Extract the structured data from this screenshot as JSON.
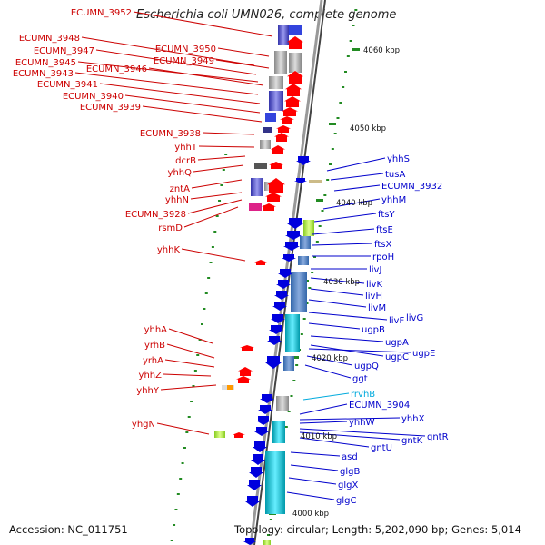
{
  "title": "Escherichia coli UMN026, complete genome",
  "footer": {
    "accession": "Accession: NC_011751",
    "topology": "Topology: circular; Length: 5,202,090 bp; Genes: 5,014"
  },
  "colors": {
    "forward": "#ff0000",
    "reverse": "#0000dd",
    "tick": "#228b22",
    "left_label": "#cc0000",
    "right_label": "#0000cc",
    "rna_label": "#00aadd"
  },
  "scale_labels": [
    {
      "text": "4060 kbp",
      "id": "4060"
    },
    {
      "text": "4050 kbp",
      "id": "4050"
    },
    {
      "text": "4040 kbp",
      "id": "4040"
    },
    {
      "text": "4030 kbp",
      "id": "4030"
    },
    {
      "text": "4020 kbp",
      "id": "4020"
    },
    {
      "text": "4010 kbp",
      "id": "4010"
    },
    {
      "text": "4000 kbp",
      "id": "4000"
    }
  ],
  "left_genes": [
    "ECUMN_3952",
    "ECUMN_3948",
    "ECUMN_3950",
    "ECUMN_3947",
    "ECUMN_3949",
    "ECUMN_3945",
    "ECUMN_3946",
    "ECUMN_3943",
    "ECUMN_3941",
    "ECUMN_3940",
    "ECUMN_3939",
    "ECUMN_3938",
    "yhhT",
    "dcrB",
    "yhhQ",
    "zntA",
    "yhhN",
    "ECUMN_3928",
    "rsmD",
    "yhhK",
    "yhhA",
    "yrhB",
    "yrhA",
    "yhhZ",
    "yhhY",
    "yhgN"
  ],
  "right_genes": [
    "yhhS",
    "tusA",
    "ECUMN_3932",
    "yhhM",
    "ftsY",
    "ftsE",
    "ftsX",
    "rpoH",
    "livJ",
    "livK",
    "livH",
    "livM",
    "livF",
    "livG",
    "ugpB",
    "ugpA",
    "ugpE",
    "ugpC",
    "ugpQ",
    "ggt",
    "rrvhB",
    "ECUMN_3904",
    "yhhX",
    "yhhW",
    "gntR",
    "gntK",
    "gntU",
    "asd",
    "glgB",
    "glgX",
    "glgC"
  ]
}
